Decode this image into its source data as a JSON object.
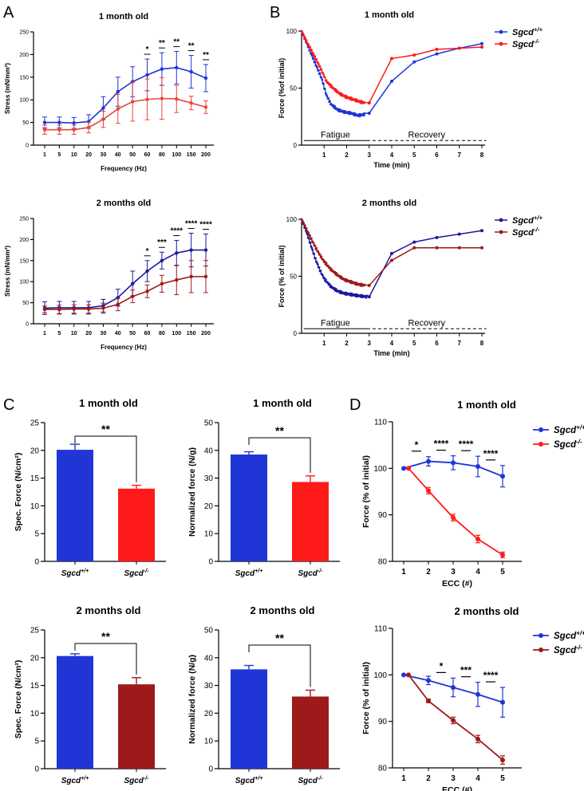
{
  "figure": {
    "panel_letters": [
      "A",
      "B",
      "C",
      "D"
    ]
  },
  "colors": {
    "wt_blue": "#1f35d6",
    "ko_red_light": "#e8463c",
    "ko_red_bright": "#ff1a1a",
    "wt_navy": "#1a1a9e",
    "ko_darkred": "#9e1a1a",
    "axis": "#000000"
  },
  "legend": {
    "wt_base": "Sgcd",
    "wt_sup": "+/+",
    "ko_base": "Sgcd",
    "ko_sup": "-/-"
  },
  "chart_data": [
    {
      "id": "A1",
      "panel": "A",
      "type": "line",
      "title": "1 month old",
      "xlabel": "Frequency (Hz)",
      "ylabel": "Stress (mN/mm²)",
      "categories": [
        "1",
        "5",
        "10",
        "20",
        "30",
        "40",
        "50",
        "60",
        "80",
        "100",
        "150",
        "200"
      ],
      "ylim": [
        0,
        250
      ],
      "yticks": [
        "0",
        "50",
        "100",
        "150",
        "200",
        "250"
      ],
      "series": [
        {
          "name": "Sgcd+/+",
          "values": [
            50,
            50,
            49,
            52,
            82,
            118,
            140,
            155,
            168,
            171,
            162,
            148
          ],
          "err": [
            12,
            12,
            12,
            15,
            25,
            32,
            33,
            35,
            36,
            36,
            36,
            30
          ]
        },
        {
          "name": "Sgcd-/-",
          "values": [
            34,
            34,
            34,
            39,
            57,
            80,
            96,
            101,
            103,
            102,
            93,
            84
          ],
          "err": [
            10,
            10,
            10,
            12,
            18,
            32,
            43,
            45,
            46,
            30,
            15,
            14
          ]
        }
      ],
      "significance": [
        {
          "category": "60",
          "label": "*"
        },
        {
          "category": "80",
          "label": "**"
        },
        {
          "category": "100",
          "label": "**"
        },
        {
          "category": "150",
          "label": "**"
        },
        {
          "category": "200",
          "label": "**"
        }
      ]
    },
    {
      "id": "A2",
      "panel": "A",
      "type": "line",
      "title": "2 months old",
      "xlabel": "Frequency (Hz)",
      "ylabel": "Stress (mN/mm²)",
      "categories": [
        "1",
        "5",
        "10",
        "20",
        "30",
        "40",
        "50",
        "60",
        "80",
        "100",
        "150",
        "200"
      ],
      "ylim": [
        0,
        250
      ],
      "yticks": [
        "0",
        "50",
        "100",
        "150",
        "200",
        "250"
      ],
      "series": [
        {
          "name": "Sgcd+/+",
          "values": [
            37,
            38,
            38,
            38,
            43,
            62,
            95,
            125,
            150,
            168,
            175,
            175
          ],
          "err": [
            15,
            15,
            15,
            15,
            15,
            20,
            30,
            25,
            20,
            30,
            40,
            38
          ]
        },
        {
          "name": "Sgcd-/-",
          "values": [
            34,
            34,
            35,
            35,
            37,
            46,
            65,
            77,
            95,
            104,
            112,
            112
          ],
          "err": [
            8,
            10,
            10,
            10,
            12,
            15,
            15,
            15,
            20,
            35,
            38,
            38
          ]
        }
      ],
      "significance": [
        {
          "category": "60",
          "label": "*"
        },
        {
          "category": "80",
          "label": "***"
        },
        {
          "category": "100",
          "label": "****"
        },
        {
          "category": "150",
          "label": "****"
        },
        {
          "category": "200",
          "label": "****"
        }
      ]
    },
    {
      "id": "B1",
      "panel": "B",
      "type": "line",
      "title": "1 month old",
      "xlabel": "Time (min)",
      "ylabel": "Force (%of initial)",
      "xlim": [
        0,
        8
      ],
      "xticks": [
        "1",
        "2",
        "3",
        "4",
        "5",
        "6",
        "7",
        "8"
      ],
      "ylim": [
        0,
        100
      ],
      "yticks": [
        "0",
        "50",
        "100"
      ],
      "phases": [
        {
          "label": "Fatigue",
          "x": [
            0.1,
            2.9
          ]
        },
        {
          "label": "Recovery",
          "x": [
            2.9,
            8.2
          ]
        }
      ],
      "series": [
        {
          "name": "Sgcd+/+",
          "fatigue": [
            [
              0,
              100
            ],
            [
              0.3,
              86
            ],
            [
              0.6,
              72
            ],
            [
              0.9,
              58
            ],
            [
              1.1,
              44
            ],
            [
              1.3,
              36
            ],
            [
              1.6,
              31
            ],
            [
              1.9,
              29
            ],
            [
              2.2,
              28
            ],
            [
              2.5,
              26
            ],
            [
              2.8,
              27
            ]
          ],
          "fatigue_points": 90,
          "recovery": [
            [
              3,
              28
            ],
            [
              4,
              56
            ],
            [
              5,
              73
            ],
            [
              6,
              80
            ],
            [
              7,
              85
            ],
            [
              8,
              89
            ]
          ]
        },
        {
          "name": "Sgcd-/-",
          "fatigue": [
            [
              0,
              100
            ],
            [
              0.3,
              88
            ],
            [
              0.6,
              77
            ],
            [
              0.9,
              65
            ],
            [
              1.1,
              56
            ],
            [
              1.4,
              50
            ],
            [
              1.7,
              45
            ],
            [
              2.0,
              42
            ],
            [
              2.3,
              40
            ],
            [
              2.6,
              38
            ],
            [
              2.8,
              37
            ]
          ],
          "fatigue_points": 90,
          "recovery": [
            [
              3,
              37
            ],
            [
              4,
              76
            ],
            [
              5,
              79
            ],
            [
              6,
              84
            ],
            [
              7,
              85
            ],
            [
              8,
              86
            ]
          ]
        }
      ]
    },
    {
      "id": "B2",
      "panel": "B",
      "type": "line",
      "title": "2 months old",
      "xlabel": "Time (min)",
      "ylabel": "Force (% of initial)",
      "xlim": [
        0,
        8
      ],
      "xticks": [
        "1",
        "2",
        "3",
        "4",
        "5",
        "6",
        "7",
        "8"
      ],
      "ylim": [
        0,
        100
      ],
      "yticks": [
        "0",
        "50",
        "100"
      ],
      "phases": [
        {
          "label": "Fatigue",
          "x": [
            0.1,
            2.9
          ]
        },
        {
          "label": "Recovery",
          "x": [
            2.9,
            8.2
          ]
        }
      ],
      "series": [
        {
          "name": "Sgcd+/+",
          "fatigue": [
            [
              0,
              100
            ],
            [
              0.2,
              90
            ],
            [
              0.4,
              78
            ],
            [
              0.6,
              66
            ],
            [
              0.8,
              56
            ],
            [
              1.0,
              48
            ],
            [
              1.3,
              41
            ],
            [
              1.6,
              37
            ],
            [
              1.9,
              35
            ],
            [
              2.2,
              34
            ],
            [
              2.5,
              33
            ],
            [
              2.9,
              32
            ]
          ],
          "fatigue_points": 90,
          "recovery": [
            [
              3,
              32
            ],
            [
              4,
              70
            ],
            [
              5,
              80
            ],
            [
              6,
              84
            ],
            [
              7,
              87
            ],
            [
              8,
              90
            ]
          ]
        },
        {
          "name": "Sgcd-/-",
          "fatigue": [
            [
              0,
              100
            ],
            [
              0.2,
              92
            ],
            [
              0.4,
              84
            ],
            [
              0.6,
              76
            ],
            [
              0.8,
              69
            ],
            [
              1.0,
              63
            ],
            [
              1.3,
              56
            ],
            [
              1.6,
              51
            ],
            [
              1.9,
              47
            ],
            [
              2.2,
              45
            ],
            [
              2.5,
              43
            ],
            [
              2.8,
              42
            ]
          ],
          "fatigue_points": 90,
          "recovery": [
            [
              3,
              42
            ],
            [
              4,
              64
            ],
            [
              5,
              75
            ],
            [
              6,
              75
            ],
            [
              7,
              75
            ],
            [
              8,
              75
            ]
          ]
        }
      ]
    },
    {
      "id": "C1",
      "panel": "C",
      "type": "bar",
      "title": "1 month old",
      "ylabel": "Spec. Force (N/cm²)",
      "categories": [
        "Sgcd+/+",
        "Sgcd-/-"
      ],
      "values": [
        20.1,
        13.1
      ],
      "err": [
        1.0,
        0.6
      ],
      "ylim": [
        0,
        25
      ],
      "yticks": [
        "0",
        "5",
        "10",
        "15",
        "20",
        "25"
      ],
      "significance": "**"
    },
    {
      "id": "C2",
      "panel": "C",
      "type": "bar",
      "title": "1 month old",
      "ylabel": "Normalized force (N/g)",
      "categories": [
        "Sgcd+/+",
        "Sgcd-/-"
      ],
      "values": [
        38.5,
        28.6
      ],
      "err": [
        1.0,
        2.2
      ],
      "ylim": [
        0,
        50
      ],
      "yticks": [
        "0",
        "10",
        "20",
        "30",
        "40",
        "50"
      ],
      "significance": "**"
    },
    {
      "id": "C3",
      "panel": "C",
      "type": "bar",
      "title": "2 months old",
      "ylabel": "Spec. Force (N/cm²)",
      "categories": [
        "Sgcd+/+",
        "Sgcd-/-"
      ],
      "values": [
        20.3,
        15.2
      ],
      "err": [
        0.4,
        1.2
      ],
      "ylim": [
        0,
        25
      ],
      "yticks": [
        "0",
        "5",
        "10",
        "15",
        "20",
        "25"
      ],
      "significance": "**"
    },
    {
      "id": "C4",
      "panel": "C",
      "type": "bar",
      "title": "2 months old",
      "ylabel": "Normalized force (N/g)",
      "categories": [
        "Sgcd+/+",
        "Sgcd-/-"
      ],
      "values": [
        35.8,
        26.0
      ],
      "err": [
        1.4,
        2.3
      ],
      "ylim": [
        0,
        50
      ],
      "yticks": [
        "0",
        "10",
        "20",
        "30",
        "40",
        "50"
      ],
      "significance": "**"
    },
    {
      "id": "D1",
      "panel": "D",
      "type": "line",
      "title": "1 month old",
      "xlabel": "ECC (#)",
      "ylabel": "Force (% of initial)",
      "categories": [
        "1",
        "2",
        "3",
        "4",
        "5"
      ],
      "ylim": [
        80,
        110
      ],
      "yticks": [
        "80",
        "90",
        "100",
        "110"
      ],
      "series": [
        {
          "name": "Sgcd+/+",
          "values": [
            100,
            101.5,
            101.2,
            100.4,
            98.3
          ],
          "err": [
            0,
            1.0,
            1.5,
            2.2,
            2.3
          ]
        },
        {
          "name": "Sgcd-/-",
          "values": [
            100,
            95.2,
            89.4,
            84.8,
            81.4
          ],
          "err": [
            0,
            0.7,
            0.7,
            0.8,
            0.6
          ]
        }
      ],
      "significance": [
        {
          "category": "2",
          "label": "*"
        },
        {
          "category": "3",
          "label": "****"
        },
        {
          "category": "4",
          "label": "****"
        },
        {
          "category": "5",
          "label": "****"
        }
      ]
    },
    {
      "id": "D2",
      "panel": "D",
      "type": "line",
      "title": "2 months old",
      "xlabel": "ECC (#)",
      "ylabel": "Force (% of initial)",
      "categories": [
        "1",
        "2",
        "3",
        "4",
        "5"
      ],
      "ylim": [
        80,
        110
      ],
      "yticks": [
        "80",
        "90",
        "100",
        "110"
      ],
      "series": [
        {
          "name": "Sgcd+/+",
          "values": [
            100,
            98.8,
            97.3,
            95.8,
            94.1
          ],
          "err": [
            0,
            0.9,
            2.0,
            2.6,
            3.2
          ]
        },
        {
          "name": "Sgcd-/-",
          "values": [
            100,
            94.4,
            90.2,
            86.2,
            81.7
          ],
          "err": [
            0,
            0.4,
            0.7,
            0.8,
            0.9
          ]
        }
      ],
      "significance": [
        {
          "category": "3",
          "label": "*"
        },
        {
          "category": "4",
          "label": "***"
        },
        {
          "category": "5",
          "label": "****"
        }
      ]
    }
  ]
}
